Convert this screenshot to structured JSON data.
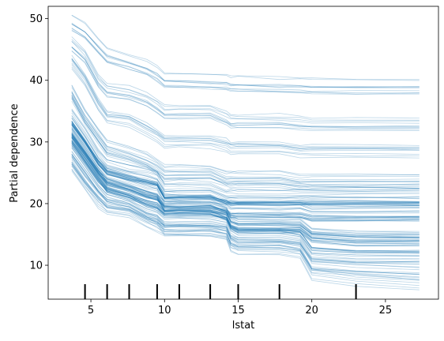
{
  "chart_data": {
    "type": "line",
    "title": "",
    "xlabel": "lstat",
    "ylabel": "Partial dependence",
    "xlim": [
      2.1,
      28.6
    ],
    "ylim": [
      4.5,
      52.0
    ],
    "xticks": [
      5,
      10,
      15,
      20,
      25
    ],
    "yticks": [
      10,
      20,
      30,
      40,
      50
    ],
    "line_color": "#1f77b4",
    "line_alpha": 0.3,
    "grid": false,
    "legend": "none",
    "x_grid": [
      3.7,
      4.6,
      5.5,
      6.1,
      7.6,
      8.8,
      9.5,
      10.0,
      11.0,
      13.1,
      14.2,
      14.5,
      15.0,
      17.8,
      19.2,
      20.0,
      23.0,
      27.3
    ],
    "ice_curve_groups": [
      {
        "count": 10,
        "y": [
          49.3,
          48.0,
          45.5,
          44.0,
          43.0,
          42.0,
          41.0,
          40.0,
          40.0,
          39.8,
          39.6,
          39.4,
          39.4,
          39.2,
          39.2,
          39.0,
          39.0,
          39.0
        ]
      },
      {
        "count": 10,
        "y": [
          46.0,
          44.0,
          40.0,
          38.5,
          38.0,
          37.0,
          36.0,
          35.0,
          35.0,
          35.0,
          34.0,
          33.5,
          33.5,
          33.5,
          33.2,
          33.0,
          33.0,
          33.0
        ]
      },
      {
        "count": 10,
        "y": [
          43.0,
          40.0,
          36.0,
          34.0,
          33.5,
          32.0,
          31.0,
          30.0,
          30.0,
          30.0,
          29.5,
          29.0,
          29.0,
          29.0,
          28.5,
          28.5,
          28.5,
          28.5
        ]
      },
      {
        "count": 15,
        "y": [
          38.0,
          34.0,
          31.0,
          29.0,
          28.0,
          27.0,
          26.0,
          25.0,
          25.0,
          25.0,
          24.0,
          24.0,
          24.0,
          24.0,
          23.5,
          23.5,
          23.5,
          23.5
        ]
      },
      {
        "count": 25,
        "y": [
          34.0,
          31.0,
          27.5,
          26.0,
          25.0,
          24.5,
          24.0,
          22.0,
          22.0,
          22.0,
          21.0,
          21.0,
          21.0,
          21.0,
          21.0,
          21.0,
          21.0,
          21.0
        ]
      },
      {
        "count": 25,
        "y": [
          32.0,
          29.0,
          26.0,
          24.5,
          23.5,
          22.5,
          22.0,
          20.0,
          20.0,
          20.0,
          19.5,
          19.0,
          19.0,
          19.0,
          19.0,
          18.5,
          18.5,
          18.5
        ]
      },
      {
        "count": 30,
        "y": [
          31.0,
          28.0,
          25.0,
          23.0,
          22.0,
          21.0,
          20.5,
          19.5,
          19.5,
          19.5,
          18.5,
          17.0,
          16.5,
          16.5,
          16.5,
          15.0,
          14.5,
          14.5
        ]
      },
      {
        "count": 20,
        "y": [
          29.0,
          26.0,
          23.0,
          21.5,
          20.5,
          19.0,
          18.5,
          17.5,
          17.5,
          17.5,
          17.0,
          15.5,
          15.0,
          15.0,
          14.5,
          12.0,
          11.5,
          11.5
        ]
      },
      {
        "count": 10,
        "y": [
          27.0,
          24.0,
          21.5,
          20.0,
          19.5,
          18.0,
          17.5,
          16.0,
          16.0,
          16.0,
          15.5,
          14.0,
          13.5,
          13.5,
          13.0,
          10.0,
          9.5,
          9.0
        ]
      },
      {
        "count": 6,
        "y": [
          26.0,
          23.0,
          20.0,
          19.0,
          18.5,
          17.0,
          16.0,
          15.5,
          15.5,
          15.5,
          15.0,
          13.0,
          12.5,
          12.5,
          12.0,
          8.5,
          7.5,
          6.8
        ]
      }
    ],
    "rug_x": [
      4.6,
      6.1,
      7.6,
      9.5,
      11.0,
      13.1,
      15.0,
      17.8,
      23.0
    ]
  }
}
